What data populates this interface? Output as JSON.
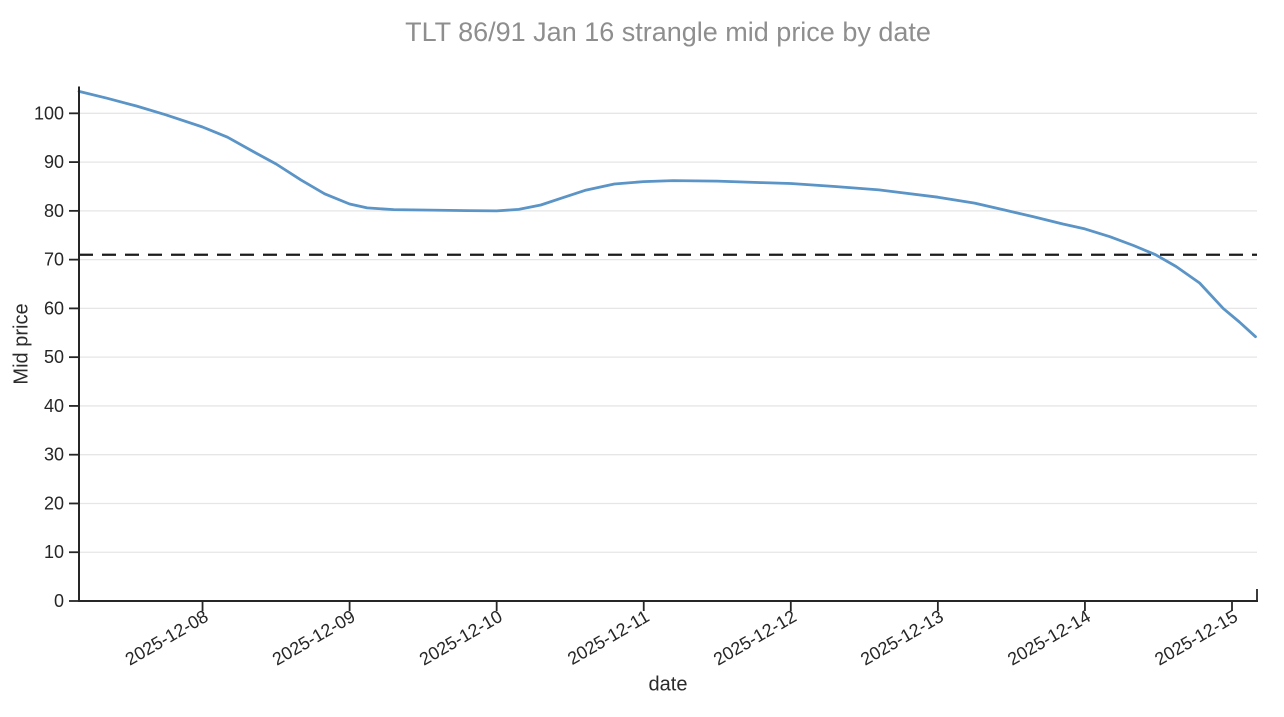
{
  "chart_data": {
    "type": "line",
    "title": "TLT 86/91 Jan 16 strangle mid price by date",
    "xlabel": "date",
    "ylabel": "Mid price",
    "grid": "horizontal",
    "legend": "none",
    "x_axis": {
      "tick_labels": [
        "2025-12-08",
        "2025-12-09",
        "2025-12-10",
        "2025-12-11",
        "2025-12-12",
        "2025-12-13",
        "2025-12-14",
        "2025-12-15"
      ],
      "tick_positions_days_from_2025_12_07": [
        1,
        2,
        3,
        4,
        5,
        6,
        7,
        8
      ],
      "range_days_from_2025_12_07": [
        0.16,
        8.17
      ],
      "label_rotation_deg": 30
    },
    "y_axis": {
      "ticks": [
        0,
        10,
        20,
        30,
        40,
        50,
        60,
        70,
        80,
        90,
        100
      ],
      "range": [
        0,
        105.5
      ]
    },
    "series": [
      {
        "name": "TLT 86/91 Jan 16 strangle mid price",
        "color": "#5b94c6",
        "x_days_from_2025_12_07": [
          0.16,
          0.35,
          0.55,
          0.75,
          1.0,
          1.17,
          1.33,
          1.5,
          1.67,
          1.83,
          2.0,
          2.12,
          2.3,
          2.55,
          2.8,
          3.0,
          3.15,
          3.3,
          3.45,
          3.6,
          3.8,
          4.0,
          4.2,
          4.5,
          4.8,
          5.0,
          5.3,
          5.6,
          6.0,
          6.25,
          6.45,
          6.65,
          6.85,
          7.0,
          7.17,
          7.33,
          7.48,
          7.62,
          7.78,
          7.94,
          8.05,
          8.16
        ],
        "y": [
          104.5,
          103.1,
          101.5,
          99.7,
          97.2,
          95.1,
          92.4,
          89.6,
          86.3,
          83.5,
          81.4,
          80.6,
          80.25,
          80.15,
          80.05,
          80.0,
          80.3,
          81.2,
          82.7,
          84.2,
          85.5,
          86.0,
          86.2,
          86.1,
          85.8,
          85.6,
          85.0,
          84.3,
          82.8,
          81.6,
          80.2,
          78.8,
          77.3,
          76.3,
          74.7,
          72.9,
          71.0,
          68.6,
          65.2,
          60.0,
          57.2,
          54.2
        ]
      }
    ],
    "reference_line": {
      "y": 71,
      "style": "dashed",
      "color": "#1c1c1c"
    }
  },
  "colors": {
    "line": "#5b94c6",
    "reference": "#1c1c1c",
    "grid": "#e6e6e6",
    "spine": "#262626",
    "tick_label": "#262626",
    "title": "#8e8e8e"
  }
}
